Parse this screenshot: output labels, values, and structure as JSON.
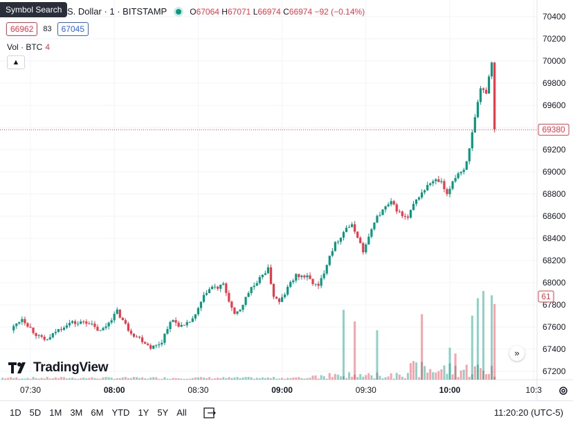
{
  "tooltip": "Symbol Search",
  "legend": {
    "title": "U.S. Dollar · 1 · BITSTAMP",
    "o_label": "O",
    "o": "67064",
    "h_label": "H",
    "h": "67071",
    "l_label": "L",
    "l": "66974",
    "c_label": "C",
    "c": "66974",
    "change": "−92 (−0.14%)"
  },
  "quote": {
    "bid": "66962",
    "spread": "83",
    "ask": "67045"
  },
  "volume": {
    "label": "Vol · BTC",
    "value": "4"
  },
  "brand": {
    "name": "TradingView"
  },
  "last_price_label": "69380",
  "volume_label": "61",
  "bottom": {
    "ranges": [
      "1D",
      "5D",
      "1M",
      "3M",
      "6M",
      "YTD",
      "1Y",
      "5Y",
      "All"
    ],
    "clock": "11:20:20 (UTC-5)"
  },
  "colors": {
    "up": "#089981",
    "down": "#f23645",
    "accent": "#2962ff"
  },
  "icons": {
    "compare": "compare-icon",
    "gear": "gear-icon",
    "scroll": "scroll-right-icon",
    "collapse": "chevron-up-icon"
  },
  "chart_data": {
    "type": "candlestick",
    "symbol": "U.S. Dollar · 1 · BITSTAMP",
    "y_ticks": [
      "70400",
      "70200",
      "70000",
      "69800",
      "69600",
      "69400",
      "69200",
      "69000",
      "68800",
      "68600",
      "68400",
      "68200",
      "68000",
      "67800",
      "67600",
      "67400",
      "67200"
    ],
    "ylim": [
      67100,
      70450
    ],
    "x_ticks": [
      {
        "label": "07:30",
        "bold": false,
        "t": 0
      },
      {
        "label": "08:00",
        "bold": true,
        "t": 30
      },
      {
        "label": "08:30",
        "bold": false,
        "t": 60
      },
      {
        "label": "09:00",
        "bold": true,
        "t": 90
      },
      {
        "label": "09:30",
        "bold": false,
        "t": 120
      },
      {
        "label": "10:00",
        "bold": true,
        "t": 150
      },
      {
        "label": "10:3",
        "bold": false,
        "t": 180
      }
    ],
    "price_path": [
      [
        -6,
        67570
      ],
      [
        -4,
        67630
      ],
      [
        -2,
        67680
      ],
      [
        0,
        67620
      ],
      [
        2,
        67560
      ],
      [
        4,
        67510
      ],
      [
        6,
        67480
      ],
      [
        8,
        67500
      ],
      [
        10,
        67560
      ],
      [
        12,
        67590
      ],
      [
        14,
        67630
      ],
      [
        16,
        67640
      ],
      [
        18,
        67630
      ],
      [
        20,
        67650
      ],
      [
        22,
        67640
      ],
      [
        24,
        67590
      ],
      [
        26,
        67560
      ],
      [
        28,
        67610
      ],
      [
        30,
        67680
      ],
      [
        32,
        67740
      ],
      [
        34,
        67660
      ],
      [
        36,
        67580
      ],
      [
        38,
        67530
      ],
      [
        40,
        67500
      ],
      [
        42,
        67460
      ],
      [
        44,
        67420
      ],
      [
        46,
        67430
      ],
      [
        48,
        67470
      ],
      [
        50,
        67600
      ],
      [
        52,
        67660
      ],
      [
        54,
        67620
      ],
      [
        56,
        67600
      ],
      [
        58,
        67650
      ],
      [
        60,
        67700
      ],
      [
        62,
        67820
      ],
      [
        64,
        67920
      ],
      [
        66,
        67960
      ],
      [
        68,
        67950
      ],
      [
        70,
        67980
      ],
      [
        72,
        67840
      ],
      [
        74,
        67700
      ],
      [
        76,
        67760
      ],
      [
        78,
        67860
      ],
      [
        80,
        67960
      ],
      [
        82,
        67980
      ],
      [
        84,
        68080
      ],
      [
        86,
        68120
      ],
      [
        88,
        67880
      ],
      [
        90,
        67820
      ],
      [
        92,
        67900
      ],
      [
        94,
        68000
      ],
      [
        96,
        68060
      ],
      [
        98,
        68060
      ],
      [
        100,
        68050
      ],
      [
        102,
        68000
      ],
      [
        104,
        67960
      ],
      [
        106,
        68100
      ],
      [
        108,
        68250
      ],
      [
        110,
        68350
      ],
      [
        112,
        68420
      ],
      [
        114,
        68500
      ],
      [
        116,
        68510
      ],
      [
        118,
        68420
      ],
      [
        120,
        68280
      ],
      [
        122,
        68400
      ],
      [
        124,
        68560
      ],
      [
        126,
        68620
      ],
      [
        128,
        68680
      ],
      [
        130,
        68720
      ],
      [
        132,
        68660
      ],
      [
        134,
        68600
      ],
      [
        136,
        68580
      ],
      [
        138,
        68700
      ],
      [
        140,
        68780
      ],
      [
        142,
        68840
      ],
      [
        144,
        68900
      ],
      [
        146,
        68920
      ],
      [
        148,
        68900
      ],
      [
        150,
        68780
      ],
      [
        152,
        68920
      ],
      [
        154,
        68990
      ],
      [
        156,
        69020
      ],
      [
        158,
        69200
      ],
      [
        160,
        69480
      ],
      [
        162,
        69740
      ],
      [
        164,
        69720
      ],
      [
        166,
        70000
      ],
      [
        167,
        69380
      ]
    ],
    "volume_bars": [
      {
        "t": 150,
        "v": 22,
        "up": true
      },
      {
        "t": 152,
        "v": 18,
        "up": false
      },
      {
        "t": 158,
        "v": 44,
        "up": true
      },
      {
        "t": 160,
        "v": 56,
        "up": true
      },
      {
        "t": 162,
        "v": 61,
        "up": true
      },
      {
        "t": 165,
        "v": 58,
        "up": true
      },
      {
        "t": 166,
        "v": 52,
        "up": false
      },
      {
        "t": 140,
        "v": 45,
        "up": false
      },
      {
        "t": 112,
        "v": 48,
        "up": true
      },
      {
        "t": 116,
        "v": 40,
        "up": false
      },
      {
        "t": 124,
        "v": 34,
        "up": true
      }
    ]
  }
}
